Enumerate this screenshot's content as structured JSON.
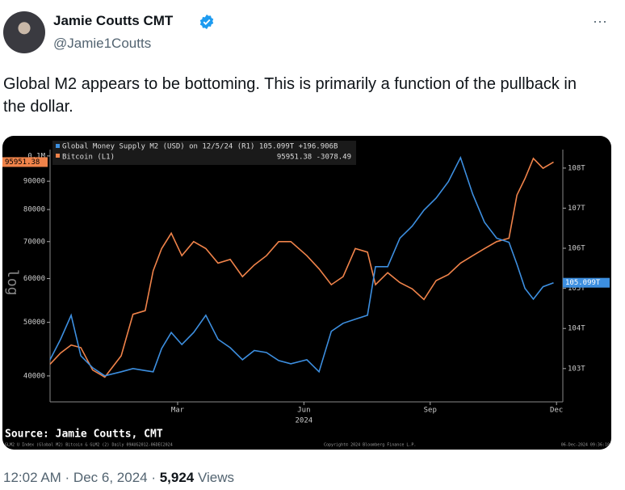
{
  "tweet": {
    "name": "Jamie Coutts CMT",
    "handle": "@Jamie1Coutts",
    "menu": "···",
    "text": "Global M2 appears to be bottoming. This is primarily a function of the pullback in the dollar.",
    "time": "12:02 AM · Dec 6, 2024 · ",
    "views_count": "5,924",
    "views_label": " Views"
  },
  "chart_data": {
    "type": "line",
    "ylog": true,
    "legend": [
      "Global Money Supply M2 (USD) on 12/5/24 (R1) 105.099T +196.906B",
      "Bitcoin (L1)",
      "95951.38 -3078.49"
    ],
    "last_value_labels": {
      "y": "95951.38",
      "y2": "105.099T"
    },
    "ylabel": "log",
    "year_label": "2024",
    "source": "Source: Jamie Coutts, CMT",
    "footer": [
      "GLM2 U Index (Global M2) Bitcoin & GLM2 (2) Daily 09AUG2012-06DEC2024",
      "Copyright© 2024 Bloomberg Finance L.P.",
      "06-Dec-2024 09:36:18"
    ],
    "x": [
      -1.03,
      -0.78,
      -0.53,
      -0.3,
      -0.02,
      0.27,
      0.66,
      0.94,
      1.23,
      1.42,
      1.62,
      1.85,
      2.1,
      2.38,
      2.67,
      2.96,
      3.25,
      3.54,
      3.82,
      4.11,
      4.4,
      4.69,
      5.07,
      5.36,
      5.65,
      5.93,
      6.22,
      6.51,
      6.7,
      6.99,
      7.28,
      7.57,
      7.85,
      8.14,
      8.43,
      8.72,
      9.01,
      9.29,
      9.58,
      9.87,
      10.06,
      10.25,
      10.45,
      10.68,
      10.93
    ],
    "xlim": [
      -1.03,
      11.15
    ],
    "xticks": [
      {
        "value": 2,
        "label": "Mar"
      },
      {
        "value": 5,
        "label": "Jun"
      },
      {
        "value": 8,
        "label": "Sep"
      },
      {
        "value": 11,
        "label": "Dec"
      }
    ],
    "ylim": [
      35900,
      102700
    ],
    "yticks": [
      40000,
      50000,
      60000,
      70000,
      80000,
      90000,
      {
        "value": 100000,
        "label": "0.1M"
      }
    ],
    "y2lim": [
      102.17,
      108.46
    ],
    "y2ticks": [
      {
        "value": 103,
        "label": "103T"
      },
      {
        "value": 104,
        "label": "104T"
      },
      {
        "value": 105,
        "label": "105T"
      },
      {
        "value": 106,
        "label": "106T"
      },
      {
        "value": 107,
        "label": "107T"
      },
      {
        "value": 108,
        "label": "108T"
      }
    ],
    "series": [
      {
        "name": "Bitcoin (L1)",
        "color": "#f0834a",
        "axis": "y",
        "values": [
          42000,
          44000,
          45500,
          45000,
          41000,
          39800,
          43500,
          51700,
          52500,
          62000,
          68000,
          72500,
          66000,
          70000,
          68000,
          64000,
          65000,
          60500,
          63500,
          66000,
          70000,
          70000,
          66000,
          62500,
          58500,
          60500,
          68000,
          67000,
          58500,
          61500,
          59000,
          57500,
          55000,
          59500,
          61000,
          64000,
          66000,
          68000,
          70000,
          71000,
          85000,
          91000,
          99000,
          95000,
          97500
        ]
      },
      {
        "name": "Global Money Supply M2 (USD)",
        "color": "#3d8fe0",
        "axis": "y2",
        "values": [
          103.22,
          103.73,
          104.33,
          103.32,
          103.02,
          102.82,
          102.92,
          103.0,
          102.95,
          102.92,
          103.5,
          103.9,
          103.6,
          103.9,
          104.33,
          103.73,
          103.52,
          103.22,
          103.45,
          103.4,
          103.2,
          103.12,
          103.22,
          102.92,
          103.93,
          104.13,
          104.23,
          104.33,
          105.54,
          105.54,
          106.25,
          106.55,
          106.95,
          107.25,
          107.66,
          108.26,
          107.35,
          106.65,
          106.25,
          106.15,
          105.6,
          105.0,
          104.73,
          105.04,
          105.14
        ]
      }
    ]
  }
}
